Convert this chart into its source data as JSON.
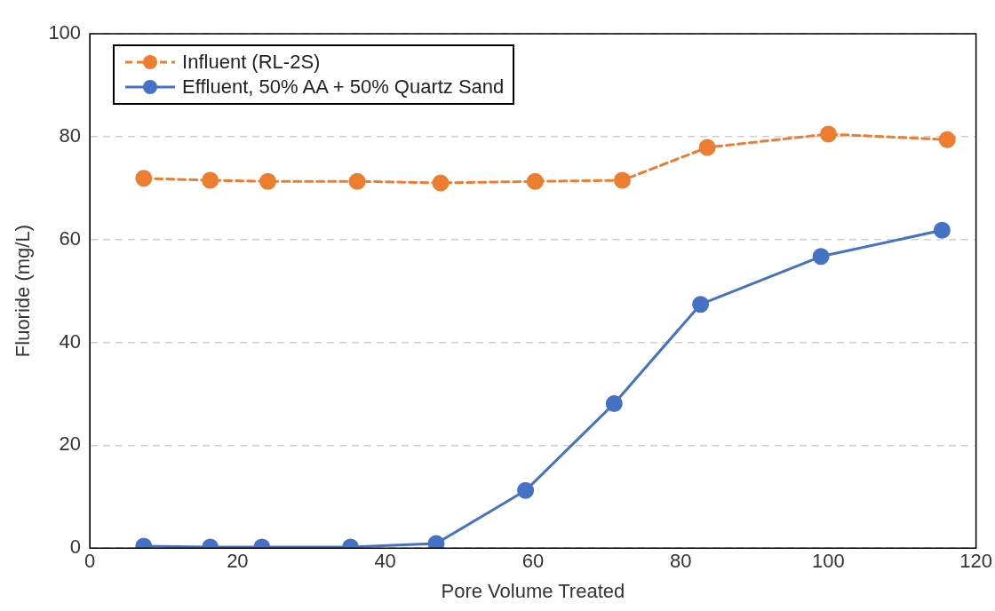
{
  "chart_data": {
    "type": "line",
    "xlabel": "Pore Volume Treated",
    "ylabel": "Fluoride (mg/L)",
    "xlim": [
      0,
      120
    ],
    "xticks": [
      0,
      20,
      40,
      60,
      80,
      100,
      120
    ],
    "ylim": [
      0,
      100
    ],
    "yticks": [
      0,
      20,
      40,
      60,
      80,
      100
    ],
    "grid": "y",
    "legend": "top left",
    "marker": "circle",
    "series": [
      {
        "name": "Influent (RL-2S)",
        "color": "#ed7d31",
        "line_style": "dashed",
        "x": [
          7.3,
          16.3,
          24.1,
          36.2,
          47.5,
          60.3,
          72.1,
          83.6,
          100,
          116.1
        ],
        "values": [
          71.9,
          71.5,
          71.3,
          71.3,
          71.0,
          71.3,
          71.5,
          77.9,
          80.5,
          79.4
        ]
      },
      {
        "name": "Effluent, 50% AA + 50% Quartz Sand",
        "color": "#4472c4",
        "line_style": "solid",
        "x": [
          7.3,
          16.3,
          23.3,
          35.3,
          46.9,
          59.0,
          71.0,
          82.7,
          99.0,
          115.4
        ],
        "values": [
          0.4,
          0.2,
          0.2,
          0.2,
          0.9,
          11.2,
          28.1,
          47.4,
          56.7,
          61.8
        ]
      }
    ]
  }
}
